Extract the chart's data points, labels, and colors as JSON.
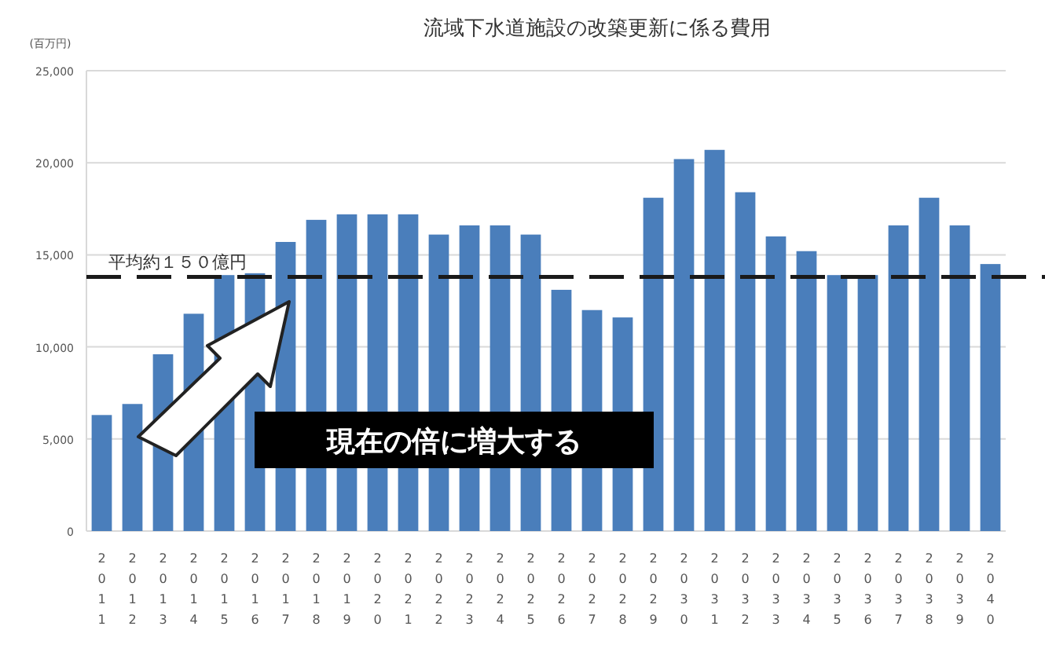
{
  "chart_data": {
    "type": "bar",
    "title": "流域下水道施設の改築更新に係る費用",
    "ylabel": "(百万円)",
    "categories": [
      "2011",
      "2012",
      "2013",
      "2014",
      "2015",
      "2016",
      "2017",
      "2018",
      "2019",
      "2020",
      "2021",
      "2022",
      "2023",
      "2024",
      "2025",
      "2026",
      "2027",
      "2028",
      "2029",
      "2030",
      "2031",
      "2032",
      "2033",
      "2034",
      "2035",
      "2036",
      "2037",
      "2038",
      "2039",
      "2040"
    ],
    "values": [
      6300,
      6900,
      9600,
      11800,
      13900,
      14000,
      15700,
      16900,
      17200,
      17200,
      17200,
      16100,
      16600,
      16600,
      16100,
      13100,
      12000,
      11600,
      18100,
      20200,
      20700,
      18400,
      16000,
      15200,
      13900,
      13900,
      16600,
      18100,
      16600,
      14500
    ],
    "color": "#4a7ebb",
    "ylim": [
      0,
      25000
    ],
    "yticks": [
      {
        "value": 0,
        "label": "0"
      },
      {
        "value": 5000,
        "label": "5,000"
      },
      {
        "value": 10000,
        "label": "10,000"
      },
      {
        "value": 15000,
        "label": "15,000"
      },
      {
        "value": 20000,
        "label": "20,000"
      },
      {
        "value": 25000,
        "label": "25,000"
      }
    ],
    "grid": "y",
    "ref_lines": [
      {
        "axis": "y",
        "value": 13800,
        "label": "平均約１５０億円",
        "color": "#1a1a1a",
        "line_style": "dashed"
      }
    ],
    "annotations": [
      "現在の倍に増大する"
    ]
  }
}
